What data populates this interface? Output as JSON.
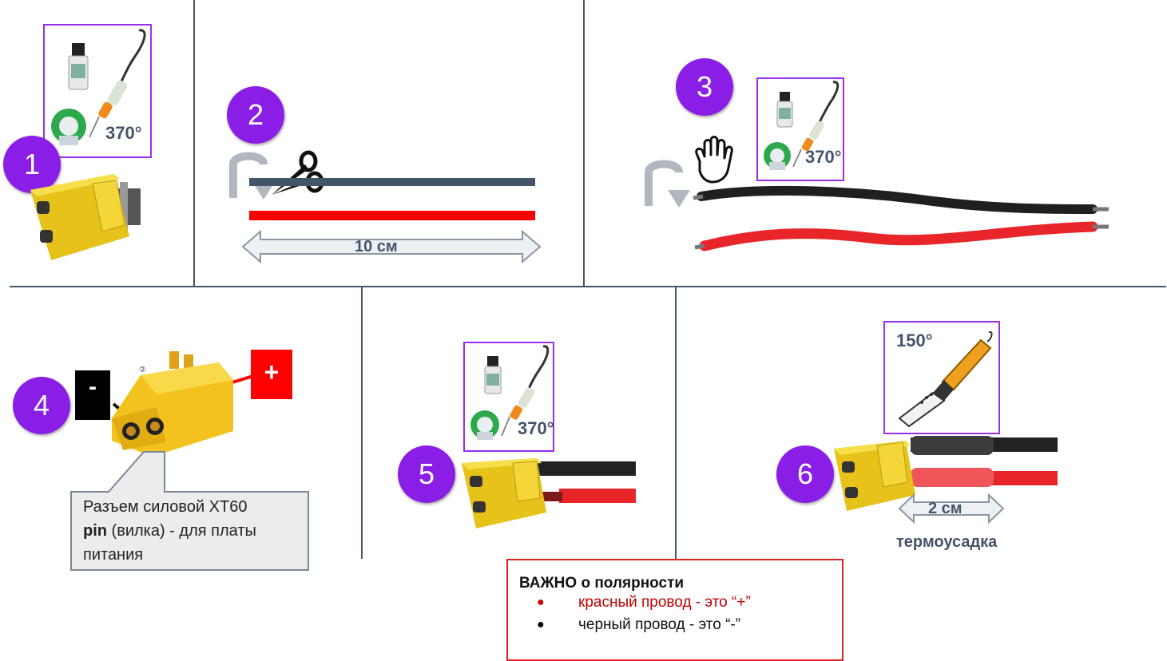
{
  "steps": {
    "s1": "1",
    "s2": "2",
    "s3": "3",
    "s4": "4",
    "s5": "5",
    "s6": "6"
  },
  "temperatures": {
    "t1": "370°",
    "t3": "370°",
    "t5": "370°",
    "t6": "150°"
  },
  "measurements": {
    "wire_length": "10 см",
    "shrink_length": "2 см",
    "shrink_label": "термоусадка"
  },
  "polarity_tags": {
    "minus": "-",
    "plus": "+"
  },
  "connector_callout": {
    "line1": "Разъем силовой XT60",
    "line2_bold": "pin",
    "line2_rest": " (вилка) - для платы",
    "line3": "питания"
  },
  "polarity_note": {
    "title": "ВАЖНО о полярности",
    "red_wire": "красный провод - это “+”",
    "black_wire": "черный провод - это “-”",
    "bullet": "●"
  },
  "colors": {
    "badge": "#8a1ee6",
    "tool_border": "#9a2ee8",
    "separator": "#44546a",
    "connector_yellow": "#f2d21f",
    "wire_red": "#ff0000",
    "wire_dark": "#44546a",
    "note_border": "#d22222"
  }
}
